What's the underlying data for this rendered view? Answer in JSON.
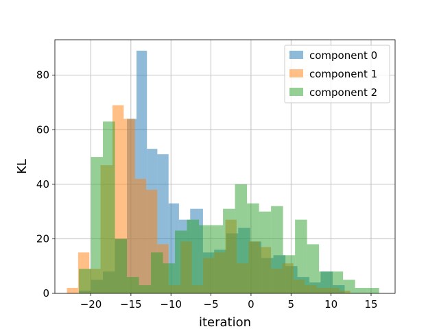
{
  "chart_data": {
    "type": "bar",
    "subtype": "overlaid-histogram",
    "xlabel": "iteration",
    "ylabel": "KL",
    "xlim": [
      -24.5,
      18.0
    ],
    "ylim": [
      0,
      93
    ],
    "xticks": [
      -20,
      -15,
      -10,
      -5,
      0,
      5,
      10,
      15
    ],
    "xtick_labels": [
      "−20",
      "−15",
      "−10",
      "−5",
      "0",
      "5",
      "10",
      "15"
    ],
    "yticks": [
      0,
      20,
      40,
      60,
      80
    ],
    "ytick_labels": [
      "0",
      "20",
      "40",
      "60",
      "80"
    ],
    "grid": true,
    "legend_position": "top-right",
    "bar_alpha": 0.5,
    "series": [
      {
        "name": "component 0",
        "color": "#1f77b4",
        "bin_edges": [
          -21.5,
          -20.0,
          -18.5,
          -17.0,
          -15.5,
          -14.3,
          -13.0,
          -11.7,
          -10.3,
          -9.0,
          -7.6,
          -6.0,
          -4.6,
          -3.1,
          -1.6,
          -0.1,
          1.3,
          2.8,
          4.3,
          5.8,
          7.3,
          8.7,
          10.2,
          11.7
        ],
        "counts": [
          1,
          5,
          8,
          20,
          64,
          89,
          53,
          51,
          33,
          27,
          31,
          15,
          16,
          22,
          24,
          19,
          13,
          14,
          10,
          6,
          4,
          8,
          3
        ]
      },
      {
        "name": "component 1",
        "color": "#ff7f0e",
        "bin_edges": [
          -23.0,
          -21.6,
          -20.2,
          -18.8,
          -17.3,
          -15.9,
          -14.5,
          -13.1,
          -11.7,
          -10.3,
          -8.8,
          -7.4,
          -6.0,
          -4.6,
          -3.2,
          -1.8,
          -0.3,
          1.1,
          2.5,
          3.9,
          5.3,
          6.7,
          8.2,
          9.6,
          11.0,
          12.4
        ],
        "counts": [
          2,
          15,
          9,
          47,
          69,
          64,
          42,
          38,
          18,
          3,
          19,
          3,
          13,
          15,
          27,
          11,
          19,
          17,
          9,
          11,
          5,
          3,
          2,
          2,
          1
        ]
      },
      {
        "name": "component 2",
        "color": "#2ca02c",
        "bin_edges": [
          -21.5,
          -20.0,
          -18.5,
          -17.0,
          -15.5,
          -14.0,
          -12.5,
          -11.0,
          -9.5,
          -8.0,
          -6.5,
          -5.0,
          -3.5,
          -2.0,
          -0.5,
          1.0,
          2.5,
          4.0,
          5.5,
          7.0,
          8.5,
          10.0,
          11.5,
          13.0,
          14.5,
          16.0
        ],
        "counts": [
          9,
          50,
          63,
          20,
          6,
          3,
          15,
          11,
          23,
          27,
          25,
          25,
          31,
          40,
          33,
          30,
          32,
          14,
          27,
          18,
          8,
          8,
          5,
          2,
          2
        ]
      }
    ]
  }
}
